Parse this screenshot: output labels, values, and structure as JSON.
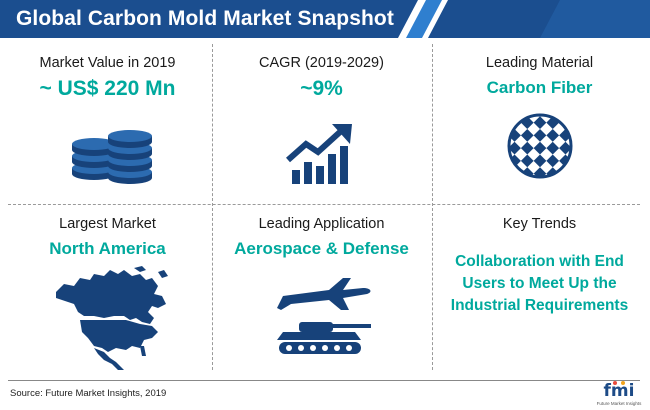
{
  "title": "Global Carbon Mold Market Snapshot",
  "colors": {
    "accent": "#00a99d",
    "banner": "#1b4e8f",
    "banner_stripe": "#2f7fcf",
    "icon_navy": "#17427a"
  },
  "cells": [
    {
      "label": "Market Value in 2019",
      "value": "~ US$ 220 Mn",
      "icon": "coin-stack-icon"
    },
    {
      "label": "CAGR (2019-2029)",
      "value": "~9%",
      "icon": "growth-chart-icon"
    },
    {
      "label": "Leading Material",
      "value": "Carbon Fiber",
      "icon": "carbon-fiber-weave-icon"
    },
    {
      "label": "Largest Market",
      "value": "North America",
      "icon": "north-america-map-icon"
    },
    {
      "label": "Leading Application",
      "value": "Aerospace & Defense",
      "icon": "airplane-tank-icon"
    },
    {
      "label": "Key Trends",
      "value": "Collaboration with End Users to Meet Up the Industrial Requirements"
    }
  ],
  "source": "Source: Future Market Insights, 2019",
  "logo": {
    "text": "fmi",
    "subtitle": "Future Market Insights"
  }
}
